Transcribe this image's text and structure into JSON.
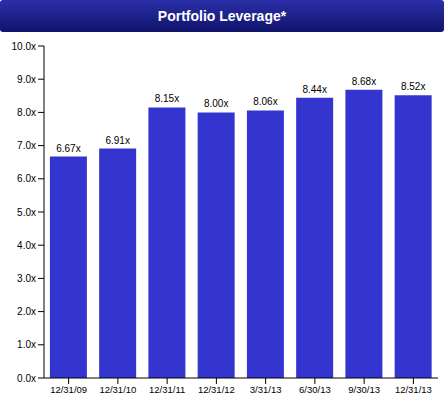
{
  "chart_data": {
    "type": "bar",
    "title": "Portfolio Leverage*",
    "categories": [
      "12/31/09",
      "12/31/10",
      "12/31/11",
      "12/31/12",
      "3/31/13",
      "6/30/13",
      "9/30/13",
      "12/31/13"
    ],
    "values": [
      6.67,
      6.91,
      8.15,
      8.0,
      8.06,
      8.44,
      8.68,
      8.52
    ],
    "value_labels": [
      "6.67x",
      "6.91x",
      "8.15x",
      "8.00x",
      "8.06x",
      "8.44x",
      "8.68x",
      "8.52x"
    ],
    "color": "#3434cf",
    "ylim": [
      0,
      10
    ],
    "yticks": [
      {
        "value": 0,
        "label": "0.0x"
      },
      {
        "value": 1,
        "label": "1.0x"
      },
      {
        "value": 2,
        "label": "2.0x"
      },
      {
        "value": 3,
        "label": "3.0x"
      },
      {
        "value": 4,
        "label": "4.0x"
      },
      {
        "value": 5,
        "label": "5.0x"
      },
      {
        "value": 6,
        "label": "6.0x"
      },
      {
        "value": 7,
        "label": "7.0x"
      },
      {
        "value": 8,
        "label": "8.0x"
      },
      {
        "value": 9,
        "label": "9.0x"
      },
      {
        "value": 10,
        "label": "10.0x"
      }
    ],
    "grid": false,
    "data_labels": true
  }
}
